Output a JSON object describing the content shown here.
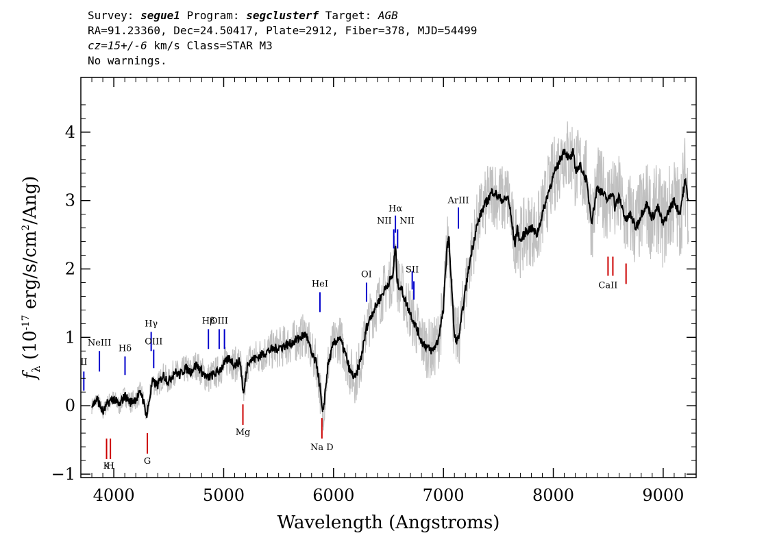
{
  "header": {
    "line1_a": "Survey: ",
    "survey": "segue1",
    "line1_b": " Program: ",
    "program": "segclusterf",
    "line1_c": " Target: ",
    "target": "AGB",
    "line2": "RA=91.23360, Dec=24.50417, Plate=2912, Fiber=378, MJD=54499",
    "cz": "cz=15+/-6",
    "line3_rest": " km/s Class=STAR M3",
    "line4": "No warnings."
  },
  "chart_data": {
    "type": "line",
    "xlabel": "Wavelength (Angstroms)",
    "ylabel": "f_λ (10^-17 erg/s/cm^2/Ang)",
    "xlim": [
      3700,
      9300
    ],
    "ylim": [
      -1.05,
      4.8
    ],
    "x_ticks": [
      4000,
      5000,
      6000,
      7000,
      8000,
      9000
    ],
    "y_ticks": [
      -1,
      0,
      1,
      2,
      3,
      4
    ],
    "series": [
      {
        "color": "#000000",
        "x": [
          3800,
          3850,
          3900,
          3950,
          4000,
          4050,
          4100,
          4150,
          4200,
          4250,
          4300,
          4350,
          4400,
          4450,
          4500,
          4550,
          4600,
          4650,
          4700,
          4750,
          4800,
          4850,
          4900,
          4950,
          5000,
          5050,
          5100,
          5150,
          5180,
          5220,
          5300,
          5400,
          5500,
          5600,
          5700,
          5750,
          5800,
          5850,
          5880,
          5900,
          5950,
          6000,
          6050,
          6100,
          6150,
          6200,
          6250,
          6280,
          6300,
          6350,
          6400,
          6450,
          6500,
          6540,
          6563,
          6580,
          6620,
          6650,
          6700,
          6750,
          6800,
          6850,
          6900,
          6950,
          7000,
          7030,
          7050,
          7080,
          7100,
          7130,
          7150,
          7200,
          7250,
          7300,
          7350,
          7400,
          7450,
          7500,
          7550,
          7590,
          7620,
          7650,
          7670,
          7700,
          7750,
          7800,
          7850,
          7900,
          7950,
          8000,
          8050,
          8100,
          8130,
          8150,
          8180,
          8200,
          8250,
          8300,
          8350,
          8400,
          8450,
          8500,
          8542,
          8560,
          8600,
          8662,
          8700,
          8750,
          8800,
          8850,
          8900,
          8950,
          9000,
          9050,
          9100,
          9150,
          9200,
          9230
        ],
        "y": [
          0.0,
          0.1,
          -0.1,
          0.05,
          0.1,
          0.0,
          0.15,
          0.05,
          0.1,
          0.2,
          -0.15,
          0.35,
          0.3,
          0.45,
          0.35,
          0.5,
          0.45,
          0.55,
          0.5,
          0.6,
          0.5,
          0.4,
          0.45,
          0.5,
          0.6,
          0.7,
          0.6,
          0.65,
          0.15,
          0.65,
          0.7,
          0.8,
          0.85,
          0.9,
          1.0,
          1.05,
          0.75,
          0.6,
          0.2,
          -0.15,
          0.6,
          0.9,
          1.0,
          0.8,
          0.5,
          0.4,
          0.7,
          0.95,
          1.15,
          1.35,
          1.5,
          1.65,
          1.8,
          1.9,
          2.35,
          1.8,
          1.7,
          1.55,
          1.35,
          1.15,
          0.95,
          0.85,
          0.8,
          0.95,
          1.4,
          2.3,
          2.45,
          1.6,
          1.0,
          0.95,
          1.1,
          1.7,
          2.2,
          2.6,
          2.85,
          3.0,
          3.15,
          3.05,
          3.0,
          3.05,
          2.7,
          2.35,
          2.6,
          2.4,
          2.55,
          2.6,
          2.5,
          2.8,
          3.1,
          3.35,
          3.55,
          3.75,
          3.65,
          3.6,
          3.7,
          3.45,
          3.5,
          3.3,
          2.7,
          3.2,
          3.1,
          3.0,
          3.15,
          2.9,
          3.05,
          2.7,
          2.8,
          2.6,
          2.8,
          2.95,
          2.75,
          2.9,
          2.65,
          2.85,
          3.0,
          2.8,
          3.3,
          3.0
        ]
      }
    ],
    "line_markers": [
      {
        "label": "NeIII",
        "x": 3869,
        "y0": 0.5,
        "y1": 0.8,
        "color": "#0000cc",
        "label_y": 0.88,
        "pos": "above"
      },
      {
        "label": "II",
        "x": 3727,
        "y0": 0.22,
        "y1": 0.5,
        "color": "#0000cc",
        "label_y": 0.6,
        "pos": "above"
      },
      {
        "label": "Hδ",
        "x": 4102,
        "y0": 0.45,
        "y1": 0.72,
        "color": "#0000cc",
        "label_y": 0.8,
        "pos": "above"
      },
      {
        "label": "Hγ",
        "x": 4340,
        "y0": 0.8,
        "y1": 1.08,
        "color": "#0000cc",
        "label_y": 1.16,
        "pos": "above"
      },
      {
        "label": "OIII",
        "x": 4363,
        "y0": 0.55,
        "y1": 0.82,
        "color": "#0000cc",
        "label_y": 0.9,
        "pos": "above"
      },
      {
        "label": "Hβ",
        "x": 4861,
        "y0": 0.83,
        "y1": 1.12,
        "color": "#0000cc",
        "label_y": 1.2,
        "pos": "above"
      },
      {
        "label": "OIII",
        "x": 4959,
        "y0": 0.83,
        "y1": 1.12,
        "color": "#0000cc",
        "label_y": 1.2,
        "pos": "above"
      },
      {
        "label": "",
        "x": 5007,
        "y0": 0.83,
        "y1": 1.12,
        "color": "#0000cc",
        "label_y": 1.2,
        "pos": "above"
      },
      {
        "label": "HeI",
        "x": 5876,
        "y0": 1.37,
        "y1": 1.66,
        "color": "#0000cc",
        "label_y": 1.74,
        "pos": "above"
      },
      {
        "label": "OI",
        "x": 6300,
        "y0": 1.52,
        "y1": 1.8,
        "color": "#0000cc",
        "label_y": 1.88,
        "pos": "above"
      },
      {
        "label": "NII",
        "x": 6548,
        "y0": 2.3,
        "y1": 2.58,
        "color": "#0000cc",
        "label_y": 2.66,
        "pos": "left"
      },
      {
        "label": "Hα",
        "x": 6563,
        "y0": 2.53,
        "y1": 2.78,
        "color": "#0000cc",
        "label_y": 2.84,
        "pos": "above"
      },
      {
        "label": "NII",
        "x": 6583,
        "y0": 2.3,
        "y1": 2.58,
        "color": "#0000cc",
        "label_y": 2.66,
        "pos": "right"
      },
      {
        "label": "SII",
        "x": 6716,
        "y0": 1.7,
        "y1": 1.97,
        "color": "#0000cc",
        "label_y": 1.95,
        "pos": "above"
      },
      {
        "label": "",
        "x": 6731,
        "y0": 1.55,
        "y1": 1.82,
        "color": "#0000cc",
        "label_y": 1.9,
        "pos": "none"
      },
      {
        "label": "ArIII",
        "x": 7136,
        "y0": 2.59,
        "y1": 2.9,
        "color": "#0000cc",
        "label_y": 2.96,
        "pos": "above"
      },
      {
        "label": "K",
        "x": 3934,
        "y0": -0.78,
        "y1": -0.48,
        "color": "#cc0000",
        "label_y": -0.92,
        "pos": "below"
      },
      {
        "label": "H",
        "x": 3969,
        "y0": -0.78,
        "y1": -0.48,
        "color": "#cc0000",
        "label_y": -0.92,
        "pos": "below"
      },
      {
        "label": "G",
        "x": 4305,
        "y0": -0.7,
        "y1": -0.4,
        "color": "#cc0000",
        "label_y": -0.85,
        "pos": "below"
      },
      {
        "label": "Mg",
        "x": 5175,
        "y0": -0.28,
        "y1": 0.02,
        "color": "#cc0000",
        "label_y": -0.43,
        "pos": "below"
      },
      {
        "label": "Na D",
        "x": 5894,
        "y0": -0.48,
        "y1": -0.18,
        "color": "#cc0000",
        "label_y": -0.65,
        "pos": "below"
      },
      {
        "label": "CaII",
        "x": 8498,
        "y0": 1.9,
        "y1": 2.18,
        "color": "#cc0000",
        "label_y": 1.72,
        "pos": "below"
      },
      {
        "label": "",
        "x": 8542,
        "y0": 1.9,
        "y1": 2.18,
        "color": "#cc0000",
        "label_y": 1.72,
        "pos": "none"
      },
      {
        "label": "",
        "x": 8662,
        "y0": 1.78,
        "y1": 2.08,
        "color": "#cc0000",
        "label_y": 1.72,
        "pos": "none"
      }
    ]
  }
}
